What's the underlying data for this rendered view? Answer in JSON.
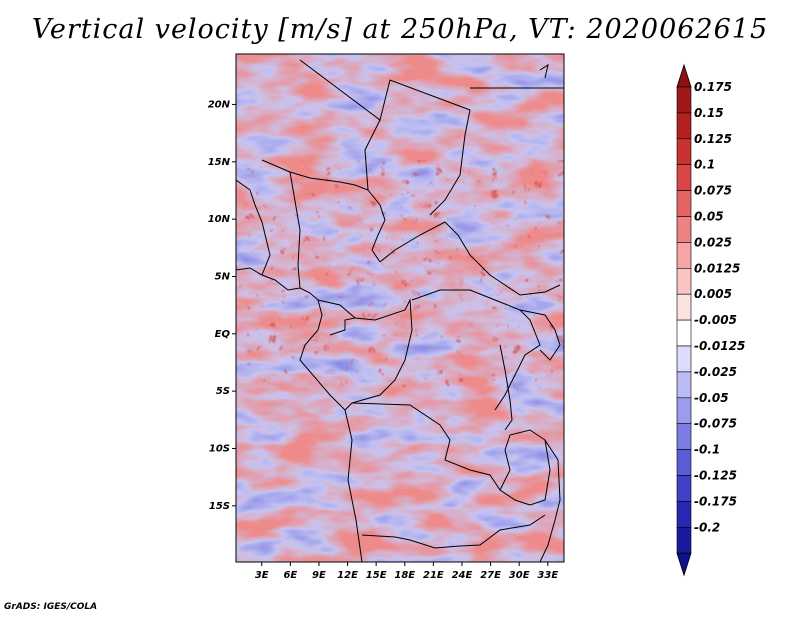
{
  "title": "Vertical velocity [m/s] at 250hPa, VT: 2020062615",
  "footer": "GrADS: IGES/COLA",
  "map": {
    "lat_ticks": [
      {
        "label": "20N",
        "value": 20
      },
      {
        "label": "15N",
        "value": 15
      },
      {
        "label": "10N",
        "value": 10
      },
      {
        "label": "5N",
        "value": 5
      },
      {
        "label": "EQ",
        "value": 0
      },
      {
        "label": "5S",
        "value": -5
      },
      {
        "label": "10S",
        "value": -10
      },
      {
        "label": "15S",
        "value": -15
      }
    ],
    "lon_ticks": [
      {
        "label": "3E",
        "value": 3
      },
      {
        "label": "6E",
        "value": 6
      },
      {
        "label": "9E",
        "value": 9
      },
      {
        "label": "12E",
        "value": 12
      },
      {
        "label": "15E",
        "value": 15
      },
      {
        "label": "18E",
        "value": 18
      },
      {
        "label": "21E",
        "value": 21
      },
      {
        "label": "24E",
        "value": 24
      },
      {
        "label": "27E",
        "value": 27
      },
      {
        "label": "30E",
        "value": 30
      },
      {
        "label": "33E",
        "value": 33
      }
    ],
    "lon_range": [
      0.3,
      34.7
    ],
    "lat_range": [
      -19.9,
      24.4
    ]
  },
  "colorbar": {
    "levels": [
      {
        "label": "0.175",
        "color": "#a01818"
      },
      {
        "label": "0.15",
        "color": "#b42020"
      },
      {
        "label": "0.125",
        "color": "#c83232"
      },
      {
        "label": "0.1",
        "color": "#d84646"
      },
      {
        "label": "0.075",
        "color": "#e46464"
      },
      {
        "label": "0.05",
        "color": "#ee8282"
      },
      {
        "label": "0.025",
        "color": "#f6a4a4"
      },
      {
        "label": "0.0125",
        "color": "#fbc4c4"
      },
      {
        "label": "0.005",
        "color": "#fde2e2"
      },
      {
        "label": "-0.005",
        "color": "#ffffff"
      },
      {
        "label": "-0.0125",
        "color": "#dcdcfa"
      },
      {
        "label": "-0.025",
        "color": "#bcbcf4"
      },
      {
        "label": "-0.05",
        "color": "#9c9cee"
      },
      {
        "label": "-0.075",
        "color": "#7c7ce4"
      },
      {
        "label": "-0.1",
        "color": "#5c5cd8"
      },
      {
        "label": "-0.125",
        "color": "#4040c8"
      },
      {
        "label": "-0.175",
        "color": "#2828b4"
      },
      {
        "label": "-0.2",
        "color": "#1a1aa0"
      }
    ],
    "top_tip_color": "#901010",
    "bottom_tip_color": "#10108c"
  }
}
